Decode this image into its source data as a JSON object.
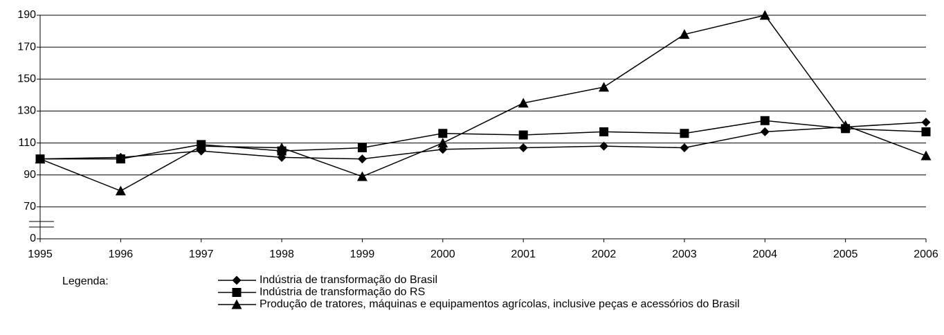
{
  "chart_data": {
    "type": "line",
    "categories": [
      "1995",
      "1996",
      "1997",
      "1998",
      "1999",
      "2000",
      "2001",
      "2002",
      "2003",
      "2004",
      "2005",
      "2006"
    ],
    "series": [
      {
        "name": "Indústria de transformação do Brasil",
        "color": "#000000",
        "marker": "diamond",
        "values": [
          100,
          101,
          105,
          101,
          100,
          106,
          107,
          108,
          107,
          117,
          120,
          123
        ]
      },
      {
        "name": "Indústria de transformação do RS",
        "color": "#000000",
        "marker": "square",
        "values": [
          100,
          100,
          109,
          105,
          107,
          116,
          115,
          117,
          116,
          124,
          119,
          117
        ]
      },
      {
        "name": "Produção de tratores, máquinas e equipamentos agrícolas, inclusive peças e acessórios do Brasil",
        "color": "#000000",
        "marker": "triangle",
        "values": [
          100,
          80,
          108,
          107,
          89,
          110,
          135,
          145,
          178,
          190,
          121,
          102
        ]
      }
    ],
    "ylim": [
      0,
      190
    ],
    "yticks": [
      0,
      70,
      90,
      110,
      130,
      150,
      170,
      190
    ],
    "axis_break": [
      0,
      70
    ],
    "grid": true,
    "legend_title": "Legenda:"
  }
}
